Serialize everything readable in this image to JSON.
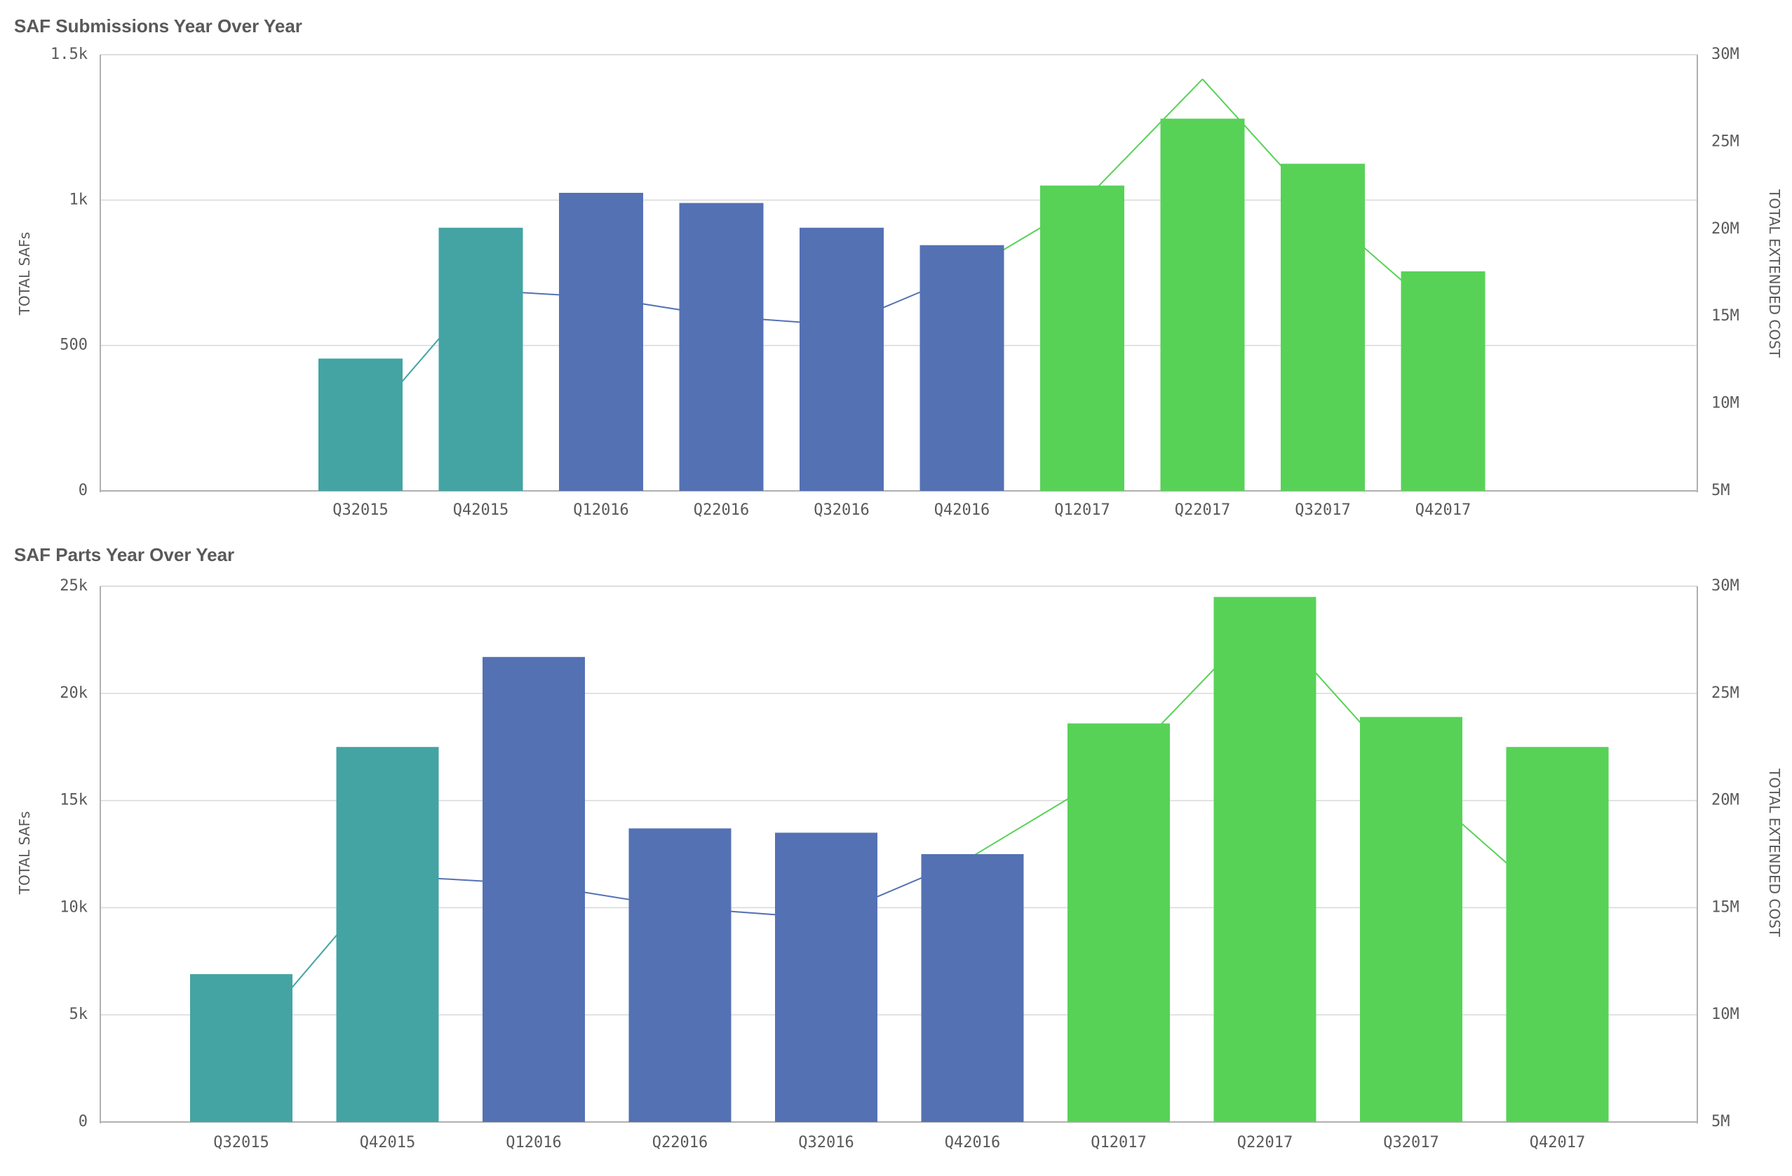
{
  "charts": [
    {
      "title": "SAF Submissions Year Over Year",
      "chart_data": {
        "type": "bar",
        "title": "SAF Submissions Year Over Year",
        "categories": [
          "Q32015",
          "Q42015",
          "Q12016",
          "Q22016",
          "Q32016",
          "Q42016",
          "Q12017",
          "Q22017",
          "Q32017",
          "Q42017"
        ],
        "category_group": [
          "2015",
          "2015",
          "2016",
          "2016",
          "2016",
          "2016",
          "2017",
          "2017",
          "2017",
          "2017"
        ],
        "series": [
          {
            "type": "bar",
            "axis": "left",
            "values": [
              455,
              905,
              1025,
              990,
              905,
              845,
              1050,
              1280,
              1125,
              755
            ]
          },
          {
            "type": "line",
            "axis": "right",
            "values": [
              8.5,
              16.5,
              16.1,
              15.0,
              14.5,
              17.4,
              21.5,
              28.6,
              21.0,
              15.0
            ]
          }
        ],
        "ylabel": "TOTAL SAFs",
        "ylabel_right": "TOTAL EXTENDED COST",
        "ylim": [
          0,
          1500
        ],
        "ylim_right": [
          5,
          30
        ],
        "yticks": [
          {
            "value": 0,
            "label": "0"
          },
          {
            "value": 500,
            "label": "500"
          },
          {
            "value": 1000,
            "label": "1k"
          },
          {
            "value": 1500,
            "label": "1.5k"
          }
        ],
        "yticks_right": [
          {
            "value": 5,
            "label": "5M"
          },
          {
            "value": 10,
            "label": "10M"
          },
          {
            "value": 15,
            "label": "15M"
          },
          {
            "value": 20,
            "label": "20M"
          },
          {
            "value": 25,
            "label": "25M"
          },
          {
            "value": 30,
            "label": "30M"
          }
        ],
        "colors": {
          "2015": "#43a4a3",
          "2016": "#5471b3",
          "2017": "#57d257"
        },
        "grid": true
      }
    },
    {
      "title": "SAF Parts Year Over Year",
      "chart_data": {
        "type": "bar",
        "title": "SAF Parts Year Over Year",
        "categories": [
          "Q32015",
          "Q42015",
          "Q12016",
          "Q22016",
          "Q32016",
          "Q42016",
          "Q12017",
          "Q22017",
          "Q32017",
          "Q42017"
        ],
        "category_group": [
          "2015",
          "2015",
          "2016",
          "2016",
          "2016",
          "2016",
          "2017",
          "2017",
          "2017",
          "2017"
        ],
        "series": [
          {
            "type": "bar",
            "axis": "left",
            "values": [
              6900,
              17500,
              21700,
              13700,
              13500,
              12500,
              18600,
              24500,
              18900,
              17500
            ]
          },
          {
            "type": "line",
            "axis": "right",
            "values": [
              8.5,
              16.5,
              16.1,
              15.0,
              14.5,
              17.4,
              21.5,
              28.6,
              21.0,
              15.0
            ]
          }
        ],
        "ylabel": "TOTAL SAFs",
        "ylabel_right": "TOTAL EXTENDED COST",
        "ylim": [
          0,
          25000
        ],
        "ylim_right": [
          5,
          30
        ],
        "yticks": [
          {
            "value": 0,
            "label": "0"
          },
          {
            "value": 5000,
            "label": "5k"
          },
          {
            "value": 10000,
            "label": "10k"
          },
          {
            "value": 15000,
            "label": "15k"
          },
          {
            "value": 20000,
            "label": "20k"
          },
          {
            "value": 25000,
            "label": "25k"
          }
        ],
        "yticks_right": [
          {
            "value": 5,
            "label": "5M"
          },
          {
            "value": 10,
            "label": "10M"
          },
          {
            "value": 15,
            "label": "15M"
          },
          {
            "value": 20,
            "label": "20M"
          },
          {
            "value": 25,
            "label": "25M"
          },
          {
            "value": 30,
            "label": "30M"
          }
        ],
        "colors": {
          "2015": "#43a4a3",
          "2016": "#5471b3",
          "2017": "#57d257"
        },
        "grid": true
      }
    }
  ]
}
